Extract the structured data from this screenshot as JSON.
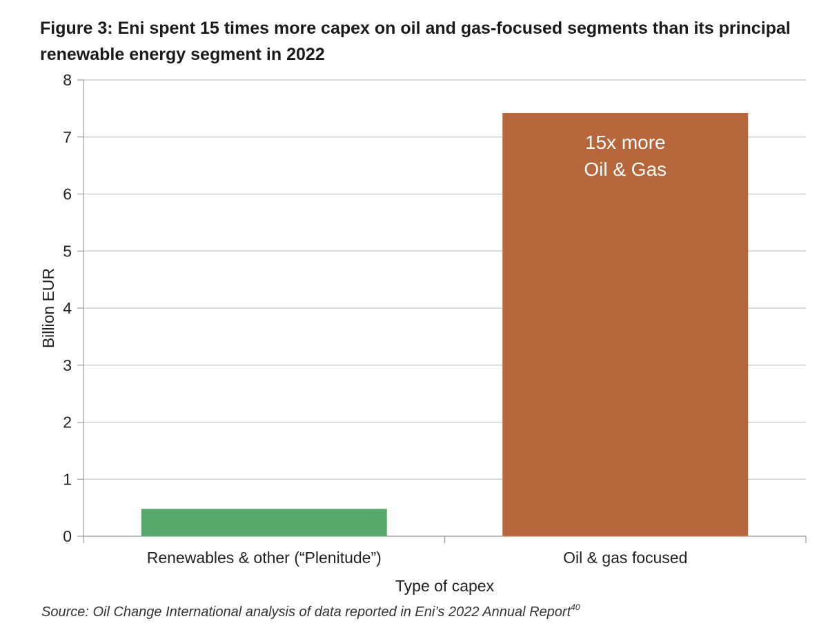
{
  "figure": {
    "title": "Figure 3: Eni spent 15 times more capex on oil and gas-focused segments than its principal renewable energy segment in 2022",
    "source": "Source: Oil Change International analysis of data reported in Eni’s 2022 Annual Report",
    "source_superscript": "40"
  },
  "chart_data": {
    "type": "bar",
    "categories": [
      "Renewables & other (“Plenitude”)",
      "Oil & gas focused"
    ],
    "values": [
      0.48,
      7.42
    ],
    "bar_colors": [
      "#55a96b",
      "#b5663a"
    ],
    "xlabel": "Type of capex",
    "ylabel": "Billion EUR",
    "ylim": [
      0,
      8
    ],
    "yticks": [
      "0",
      "1",
      "2",
      "3",
      "4",
      "5",
      "6",
      "7",
      "8"
    ],
    "grid": true,
    "legend": "none",
    "annotation": {
      "category": "Oil & gas focused",
      "lines": [
        "15x more",
        "Oil & Gas"
      ]
    }
  }
}
